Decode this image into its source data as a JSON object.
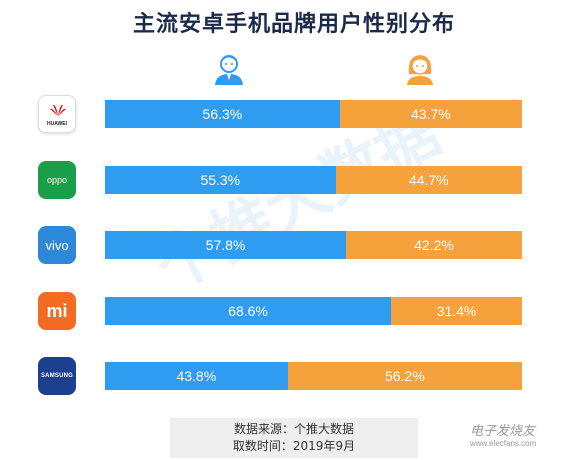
{
  "title": "主流安卓手机品牌用户性别分布",
  "watermark": "个推大数据",
  "brands": [
    {
      "logo": "huawei-icon",
      "logo_text": "HUAWEI",
      "male": "56.3%",
      "female": "43.7%"
    },
    {
      "logo": "oppo-icon",
      "logo_text": "oppo",
      "male": "55.3%",
      "female": "44.7%"
    },
    {
      "logo": "vivo-icon",
      "logo_text": "vivo",
      "male": "57.8%",
      "female": "42.2%"
    },
    {
      "logo": "mi-icon",
      "logo_text": "mi",
      "male": "68.6%",
      "female": "31.4%"
    },
    {
      "logo": "samsung-icon",
      "logo_text": "SAMSUNG",
      "male": "43.8%",
      "female": "56.2%"
    }
  ],
  "source": {
    "line1": "数据来源：个推大数据",
    "line2": "取数时间：2019年9月"
  },
  "site_mark": {
    "name": "电子发烧友",
    "url": "www.elecfans.com"
  },
  "colors": {
    "male": "#2e9cf0",
    "female": "#f5a23c",
    "title": "#1b2a4a"
  },
  "chart_data": {
    "type": "bar",
    "orientation": "horizontal",
    "stacked": true,
    "normalized": true,
    "title": "主流安卓手机品牌用户性别分布",
    "categories": [
      "HUAWEI",
      "oppo",
      "vivo",
      "mi",
      "SAMSUNG"
    ],
    "series": [
      {
        "values": [
          56.3,
          55.3,
          57.8,
          68.6,
          43.8
        ]
      },
      {
        "values": [
          43.7,
          44.7,
          42.2,
          31.4,
          56.2
        ]
      }
    ],
    "xlim": [
      0,
      100
    ],
    "unit": "%",
    "grid": false,
    "legend": "icons above bars (male left, female right)"
  }
}
